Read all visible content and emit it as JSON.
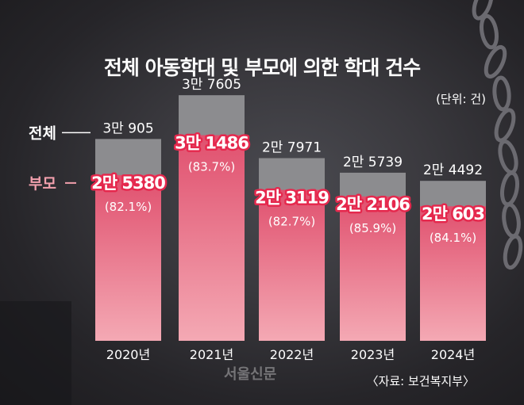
{
  "title": "전체 아동학대 및 부모에 의한 학대 건수",
  "unit": "(단위: 건)",
  "source": "〈자료: 보건복지부〉",
  "watermark": "서울신문",
  "colors": {
    "total_bar": "#8c8c8f",
    "parent_bar_top": "#e0506e",
    "parent_bar_bottom": "#f4a9b4",
    "parent_text": "#f2a0ad",
    "text": "#ffffff",
    "highlight_text": "#e5284d"
  },
  "chart_data": {
    "type": "bar",
    "categories": [
      "2020년",
      "2021년",
      "2022년",
      "2023년",
      "2024년"
    ],
    "series": [
      {
        "name": "전체",
        "values": [
          30905,
          37605,
          27971,
          25739,
          24492
        ],
        "labels": [
          "3만 905",
          "3만 7605",
          "2만 7971",
          "2만 5739",
          "2만 4492"
        ]
      },
      {
        "name": "부모",
        "values": [
          25380,
          31486,
          23119,
          22106,
          20603
        ],
        "labels": [
          "2만 5380",
          "3만 1486",
          "2만 3119",
          "2만 2106",
          "2만 603"
        ],
        "percent_labels": [
          "(82.1%)",
          "(83.7%)",
          "(82.7%)",
          "(85.9%)",
          "(84.1%)"
        ]
      }
    ],
    "legend": [
      "전체",
      "부모"
    ],
    "legend_position": "left",
    "grid": false,
    "ylim": [
      0,
      40000
    ]
  }
}
